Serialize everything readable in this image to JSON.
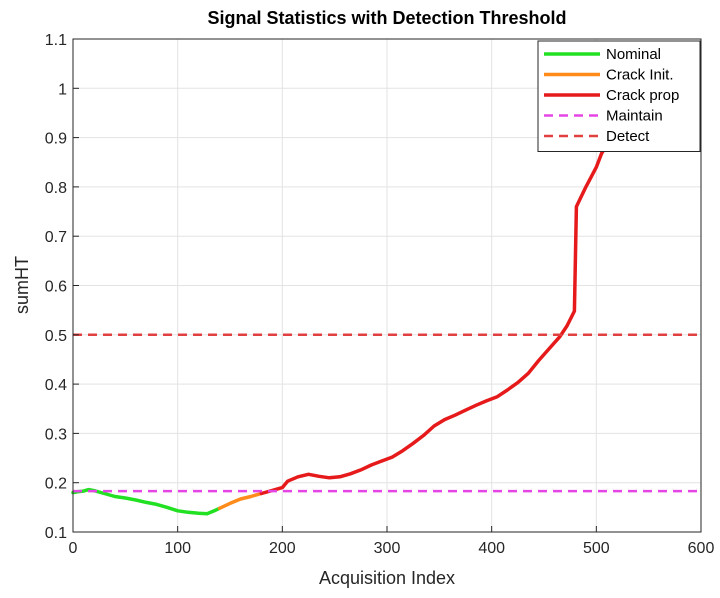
{
  "chart_data": {
    "type": "line",
    "title": "Signal Statistics with Detection Threshold",
    "xlabel": "Acquisition Index",
    "ylabel": "sumHT",
    "xlim": [
      0,
      600
    ],
    "ylim": [
      0.1,
      1.1
    ],
    "x_ticks": [
      "0",
      "100",
      "200",
      "300",
      "400",
      "500",
      "600"
    ],
    "y_ticks": [
      "0.1",
      "0.2",
      "0.3",
      "0.4",
      "0.5",
      "0.6",
      "0.7",
      "0.8",
      "0.9",
      "1",
      "1.1"
    ],
    "grid": true,
    "legend_position": "top-right",
    "series": [
      {
        "name": "Nominal",
        "color": "#22e022",
        "style": "solid",
        "points": [
          [
            0,
            0.18
          ],
          [
            5,
            0.182
          ],
          [
            10,
            0.183
          ],
          [
            15,
            0.186
          ],
          [
            20,
            0.184
          ],
          [
            30,
            0.178
          ],
          [
            40,
            0.172
          ],
          [
            50,
            0.169
          ],
          [
            60,
            0.165
          ],
          [
            70,
            0.16
          ],
          [
            80,
            0.156
          ],
          [
            90,
            0.15
          ],
          [
            100,
            0.143
          ],
          [
            110,
            0.14
          ],
          [
            120,
            0.138
          ],
          [
            128,
            0.137
          ],
          [
            135,
            0.143
          ],
          [
            140,
            0.148
          ]
        ]
      },
      {
        "name": "Crack Init.",
        "color": "#ff8c1a",
        "style": "solid",
        "points": [
          [
            140,
            0.148
          ],
          [
            150,
            0.158
          ],
          [
            160,
            0.167
          ],
          [
            170,
            0.172
          ],
          [
            180,
            0.178
          ]
        ]
      },
      {
        "name": "Crack prop",
        "color": "#e61a1a",
        "style": "solid",
        "points": [
          [
            180,
            0.178
          ],
          [
            190,
            0.184
          ],
          [
            200,
            0.19
          ],
          [
            205,
            0.203
          ],
          [
            215,
            0.212
          ],
          [
            225,
            0.217
          ],
          [
            235,
            0.213
          ],
          [
            245,
            0.21
          ],
          [
            255,
            0.212
          ],
          [
            265,
            0.218
          ],
          [
            275,
            0.226
          ],
          [
            285,
            0.236
          ],
          [
            295,
            0.244
          ],
          [
            305,
            0.252
          ],
          [
            315,
            0.265
          ],
          [
            325,
            0.28
          ],
          [
            335,
            0.296
          ],
          [
            345,
            0.315
          ],
          [
            355,
            0.328
          ],
          [
            365,
            0.337
          ],
          [
            375,
            0.347
          ],
          [
            385,
            0.357
          ],
          [
            395,
            0.366
          ],
          [
            405,
            0.374
          ],
          [
            415,
            0.388
          ],
          [
            425,
            0.403
          ],
          [
            435,
            0.422
          ],
          [
            445,
            0.448
          ],
          [
            455,
            0.472
          ],
          [
            465,
            0.496
          ],
          [
            472,
            0.518
          ],
          [
            479,
            0.548
          ],
          [
            481,
            0.76
          ],
          [
            490,
            0.8
          ],
          [
            500,
            0.84
          ],
          [
            505,
            0.868
          ],
          [
            510,
            0.885
          ]
        ]
      },
      {
        "name": "Maintain",
        "color": "#e645e6",
        "style": "dashed",
        "y": 0.183
      },
      {
        "name": "Detect",
        "color": "#e04040",
        "style": "dashed",
        "y": 0.5
      }
    ]
  }
}
